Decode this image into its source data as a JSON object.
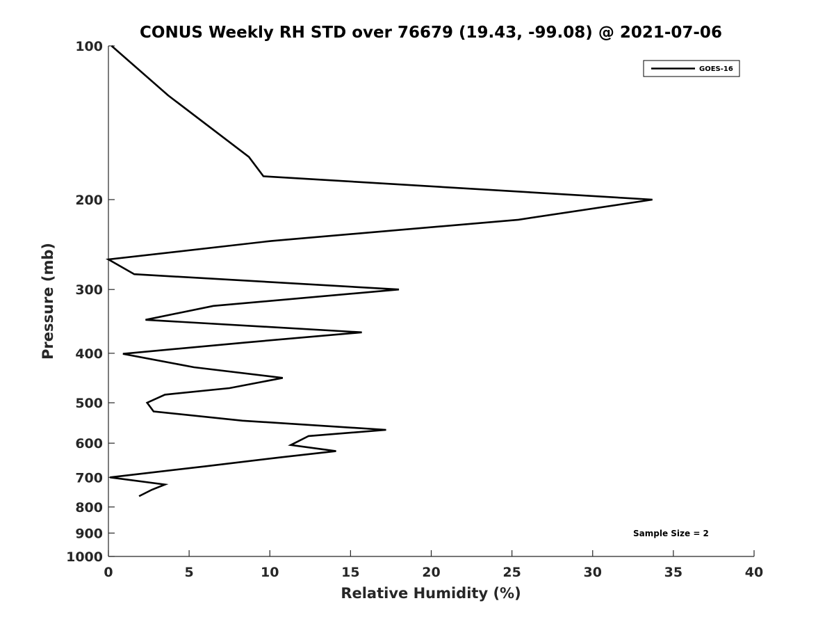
{
  "chart_data": {
    "type": "line",
    "title": "CONUS Weekly RH STD over 76679 (19.43, -99.08) @ 2021-07-06",
    "xlabel": "Relative Humidity (%)",
    "ylabel": "Pressure (mb)",
    "xlim": [
      0,
      40
    ],
    "ylim": [
      100,
      1000
    ],
    "yscale": "log",
    "y_reversed": true,
    "x_ticks": [
      "0",
      "5",
      "10",
      "15",
      "20",
      "25",
      "30",
      "35",
      "40"
    ],
    "y_ticks": [
      "100",
      "200",
      "300",
      "400",
      "500",
      "600",
      "700",
      "800",
      "900",
      "1000"
    ],
    "grid": false,
    "legend_position": "top-right",
    "annotation": "Sample Size = 2",
    "series": [
      {
        "name": "GOES-16",
        "color": "#000000",
        "points": [
          [
            0.2,
            100
          ],
          [
            3.7,
            125
          ],
          [
            8.7,
            165
          ],
          [
            9.6,
            180
          ],
          [
            33.7,
            200
          ],
          [
            25.4,
            219
          ],
          [
            10.1,
            241
          ],
          [
            0.0,
            262
          ],
          [
            1.6,
            280
          ],
          [
            18.0,
            300
          ],
          [
            6.5,
            323
          ],
          [
            2.3,
            344
          ],
          [
            15.7,
            364
          ],
          [
            8.5,
            381
          ],
          [
            0.9,
            401
          ],
          [
            5.3,
            426
          ],
          [
            10.8,
            447
          ],
          [
            7.5,
            468
          ],
          [
            3.5,
            482
          ],
          [
            2.4,
            500
          ],
          [
            2.8,
            520
          ],
          [
            8.3,
            542
          ],
          [
            17.2,
            565
          ],
          [
            12.4,
            581
          ],
          [
            11.3,
            605
          ],
          [
            14.1,
            622
          ],
          [
            10.6,
            640
          ],
          [
            6.0,
            666
          ],
          [
            0.1,
            700
          ],
          [
            3.5,
            723
          ],
          [
            2.7,
            740
          ],
          [
            1.9,
            762
          ]
        ]
      }
    ]
  }
}
